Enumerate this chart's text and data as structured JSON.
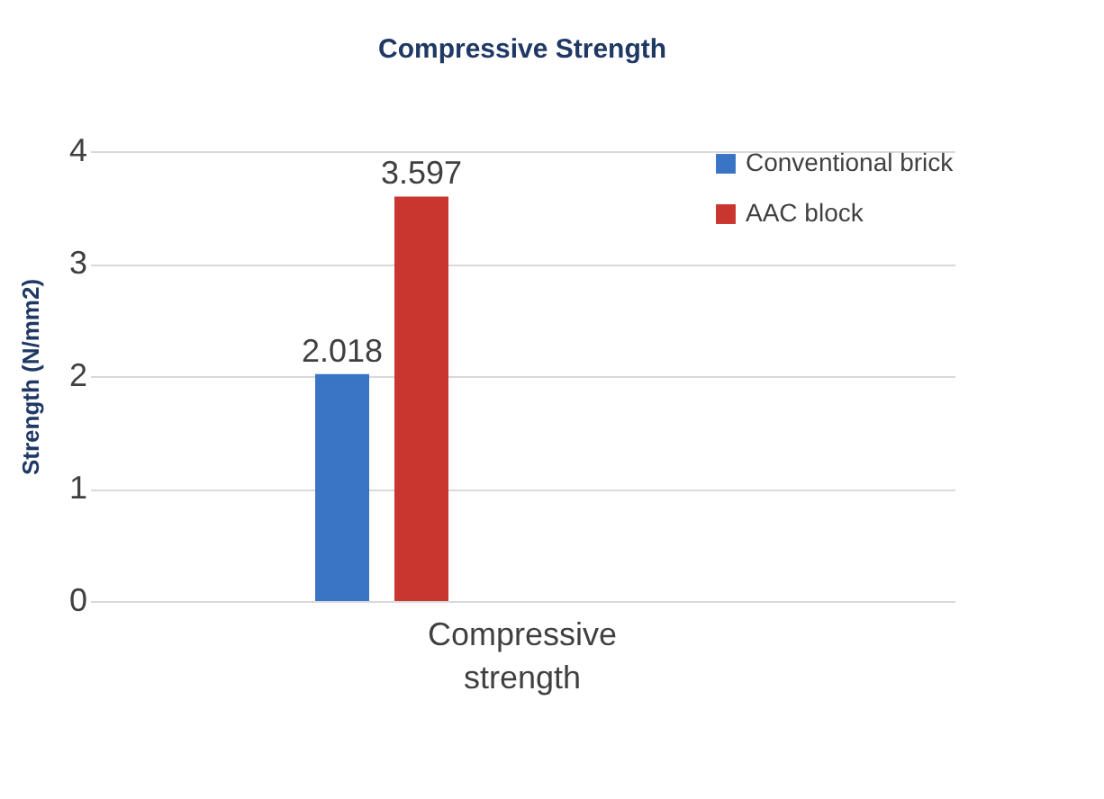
{
  "chart_data": {
    "type": "bar",
    "title": "Compressive Strength",
    "ylabel": "Strength (N/mm2)",
    "categories": [
      "Compressive strength"
    ],
    "series": [
      {
        "name": "Conventional brick",
        "color": "#3a74c4",
        "values": [
          2.018
        ]
      },
      {
        "name": "AAC block",
        "color": "#c8362f",
        "values": [
          3.597
        ]
      }
    ],
    "ylim": [
      0,
      4
    ],
    "yticks": [
      0,
      1,
      2,
      3,
      4
    ],
    "grid": "y",
    "legend": "top right",
    "data_labels": true
  }
}
